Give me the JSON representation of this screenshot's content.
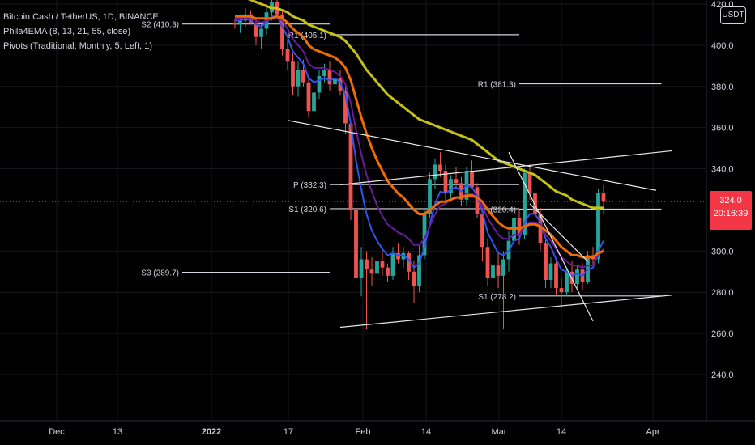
{
  "legend": {
    "symbol_line": "Bitcoin Cash / TetherUS, 1D, BINANCE",
    "indicator1": "Phila4EMA (8, 13, 21, 55, close)",
    "indicator2": "Pivots (Traditional, Monthly, 5, Left, 1)"
  },
  "currency_button": "USDT",
  "last_price": {
    "price": "324.0",
    "countdown": "20:16:39",
    "color": "#f23645"
  },
  "colors": {
    "up_candle": "#26a69a",
    "down_candle": "#ef5350",
    "ema8": "#2f54eb",
    "ema13": "#6a1b9a",
    "ema21": "#ef6c00",
    "ema55": "#c6c213",
    "pivot_line": "#d1d4dc"
  },
  "chart_data": {
    "type": "candlestick",
    "title": "Bitcoin Cash / TetherUS, 1D, BINANCE",
    "ylim": [
      225,
      427
    ],
    "y_ticks": [
      "420.0",
      "400.0",
      "380.0",
      "360.0",
      "340.0",
      "320.0",
      "300.0",
      "280.0",
      "260.0",
      "240.0"
    ],
    "x_ticks": [
      "Dec",
      "13",
      "2022",
      "17",
      "Feb",
      "14",
      "Mar",
      "14",
      "Apr"
    ],
    "candles": [
      [
        411,
        413,
        408,
        410
      ],
      [
        410,
        415,
        406,
        412
      ],
      [
        412,
        418,
        409,
        415
      ],
      [
        415,
        417,
        410,
        411
      ],
      [
        411,
        413,
        400,
        404
      ],
      [
        404,
        410,
        398,
        408
      ],
      [
        408,
        419,
        405,
        416
      ],
      [
        416,
        425,
        412,
        421
      ],
      [
        421,
        426,
        413,
        415
      ],
      [
        415,
        417,
        395,
        398
      ],
      [
        398,
        403,
        388,
        392
      ],
      [
        392,
        396,
        376,
        380
      ],
      [
        380,
        392,
        375,
        388
      ],
      [
        388,
        393,
        380,
        382
      ],
      [
        382,
        385,
        365,
        368
      ],
      [
        368,
        380,
        366,
        377
      ],
      [
        377,
        388,
        374,
        385
      ],
      [
        385,
        391,
        382,
        388
      ],
      [
        388,
        392,
        378,
        381
      ],
      [
        381,
        387,
        378,
        384
      ],
      [
        384,
        388,
        376,
        378
      ],
      [
        378,
        380,
        357,
        362
      ],
      [
        362,
        363,
        315,
        320
      ],
      [
        320,
        322,
        276,
        287
      ],
      [
        287,
        302,
        278,
        296
      ],
      [
        296,
        300,
        262,
        291
      ],
      [
        291,
        297,
        283,
        289
      ],
      [
        289,
        299,
        287,
        295
      ],
      [
        295,
        300,
        288,
        292
      ],
      [
        292,
        294,
        285,
        288
      ],
      [
        288,
        302,
        286,
        299
      ],
      [
        299,
        304,
        294,
        296
      ],
      [
        296,
        302,
        292,
        299
      ],
      [
        299,
        300,
        286,
        290
      ],
      [
        290,
        295,
        275,
        283
      ],
      [
        283,
        303,
        280,
        298
      ],
      [
        298,
        321,
        296,
        318
      ],
      [
        318,
        338,
        316,
        335
      ],
      [
        335,
        345,
        330,
        342
      ],
      [
        342,
        348,
        336,
        339
      ],
      [
        339,
        342,
        324,
        328
      ],
      [
        328,
        337,
        325,
        335
      ],
      [
        335,
        341,
        330,
        333
      ],
      [
        333,
        336,
        322,
        325
      ],
      [
        325,
        341,
        322,
        339
      ],
      [
        339,
        344,
        330,
        331
      ],
      [
        331,
        333,
        316,
        318
      ],
      [
        318,
        321,
        295,
        302
      ],
      [
        302,
        306,
        283,
        287
      ],
      [
        287,
        296,
        280,
        293
      ],
      [
        293,
        300,
        282,
        288
      ],
      [
        288,
        300,
        262,
        296
      ],
      [
        296,
        310,
        290,
        305
      ],
      [
        305,
        318,
        300,
        316
      ],
      [
        316,
        320,
        303,
        308
      ],
      [
        308,
        340,
        306,
        338
      ],
      [
        338,
        342,
        325,
        328
      ],
      [
        328,
        331,
        313,
        318
      ],
      [
        318,
        321,
        300,
        304
      ],
      [
        304,
        306,
        282,
        286
      ],
      [
        286,
        297,
        282,
        294
      ],
      [
        294,
        296,
        279,
        282
      ],
      [
        282,
        287,
        273,
        280
      ],
      [
        280,
        292,
        278,
        290
      ],
      [
        290,
        295,
        280,
        284
      ],
      [
        284,
        293,
        282,
        291
      ],
      [
        291,
        294,
        281,
        285
      ],
      [
        285,
        300,
        284,
        298
      ],
      [
        298,
        302,
        292,
        296
      ],
      [
        296,
        330,
        294,
        328
      ],
      [
        328,
        332,
        318,
        324
      ]
    ],
    "ema": [
      {
        "name": "8",
        "values": [
          412,
          412,
          413,
          412,
          410,
          409,
          411,
          414,
          414,
          409,
          404,
          397,
          394,
          391,
          384,
          382,
          383,
          384,
          383,
          384,
          382,
          376,
          362,
          344,
          330,
          318,
          310,
          305,
          301,
          298,
          299,
          298,
          298,
          296,
          292,
          294,
          302,
          313,
          323,
          329,
          328,
          330,
          331,
          329,
          332,
          331,
          327,
          319,
          309,
          304,
          299,
          298,
          300,
          305,
          306,
          314,
          318,
          318,
          314,
          306,
          302,
          296,
          291,
          290,
          288,
          289,
          288,
          291,
          292,
          300,
          305
        ]
      },
      {
        "name": "13",
        "values": [
          413,
          413,
          413,
          413,
          412,
          411,
          412,
          413,
          414,
          412,
          408,
          403,
          400,
          397,
          391,
          389,
          389,
          389,
          388,
          387,
          385,
          381,
          372,
          359,
          347,
          337,
          329,
          322,
          317,
          313,
          311,
          309,
          308,
          306,
          303,
          303,
          306,
          312,
          318,
          322,
          323,
          325,
          326,
          326,
          328,
          328,
          326,
          322,
          316,
          312,
          308,
          306,
          306,
          308,
          308,
          312,
          314,
          314,
          313,
          308,
          305,
          301,
          297,
          295,
          293,
          293,
          292,
          293,
          293,
          298,
          301
        ]
      },
      {
        "name": "21",
        "values": [
          414,
          414,
          414,
          414,
          413,
          413,
          413,
          413,
          414,
          413,
          411,
          408,
          406,
          404,
          400,
          398,
          397,
          396,
          395,
          394,
          392,
          389,
          383,
          374,
          365,
          357,
          350,
          344,
          339,
          334,
          331,
          328,
          326,
          323,
          320,
          318,
          318,
          320,
          322,
          324,
          324,
          325,
          326,
          326,
          327,
          327,
          326,
          324,
          320,
          317,
          314,
          312,
          311,
          311,
          311,
          312,
          313,
          313,
          312,
          310,
          308,
          305,
          302,
          300,
          298,
          298,
          297,
          297,
          297,
          299,
          300
        ]
      },
      {
        "name": "55",
        "values": [
          424,
          423,
          423,
          422,
          421,
          420,
          419,
          418,
          418,
          417,
          416,
          414,
          413,
          412,
          410,
          409,
          408,
          407,
          406,
          405,
          404,
          402,
          399,
          396,
          392,
          388,
          385,
          382,
          379,
          376,
          374,
          372,
          370,
          368,
          366,
          364,
          363,
          362,
          361,
          360,
          359,
          358,
          357,
          356,
          355,
          354,
          352,
          350,
          348,
          346,
          344,
          343,
          342,
          341,
          340,
          339,
          338,
          337,
          335,
          333,
          331,
          329,
          328,
          327,
          325,
          324,
          323,
          322,
          321,
          321,
          321
        ]
      }
    ],
    "pivots": [
      {
        "label": "S2 (410.3)",
        "value": 410.3,
        "from_candle": -10,
        "to_candle": 18
      },
      {
        "label": "S3 (289.7)",
        "value": 289.7,
        "from_candle": -10,
        "to_candle": 18
      },
      {
        "label": "R1 (405.1)",
        "value": 405.1,
        "from_candle": 18,
        "to_candle": 54
      },
      {
        "label": "P (332.3)",
        "value": 332.3,
        "from_candle": 18,
        "to_candle": 54
      },
      {
        "label": "S1 (320.6)",
        "value": 320.6,
        "from_candle": 18,
        "to_candle": 54
      },
      {
        "label": "R1 (381.3)",
        "value": 381.3,
        "from_candle": 54,
        "to_candle": 81
      },
      {
        "label": "P (320.4)",
        "value": 320.4,
        "from_candle": 54,
        "to_candle": 81
      },
      {
        "label": "S1 (278.2)",
        "value": 278.2,
        "from_candle": 54,
        "to_candle": 81
      }
    ],
    "trendlines": [
      [
        10,
        363.5,
        80,
        329.5
      ],
      [
        20,
        263,
        83,
        278.6
      ],
      [
        20,
        332.2,
        83,
        348.7
      ],
      [
        52,
        348,
        68,
        266
      ],
      [
        56,
        323,
        67,
        295
      ]
    ]
  }
}
